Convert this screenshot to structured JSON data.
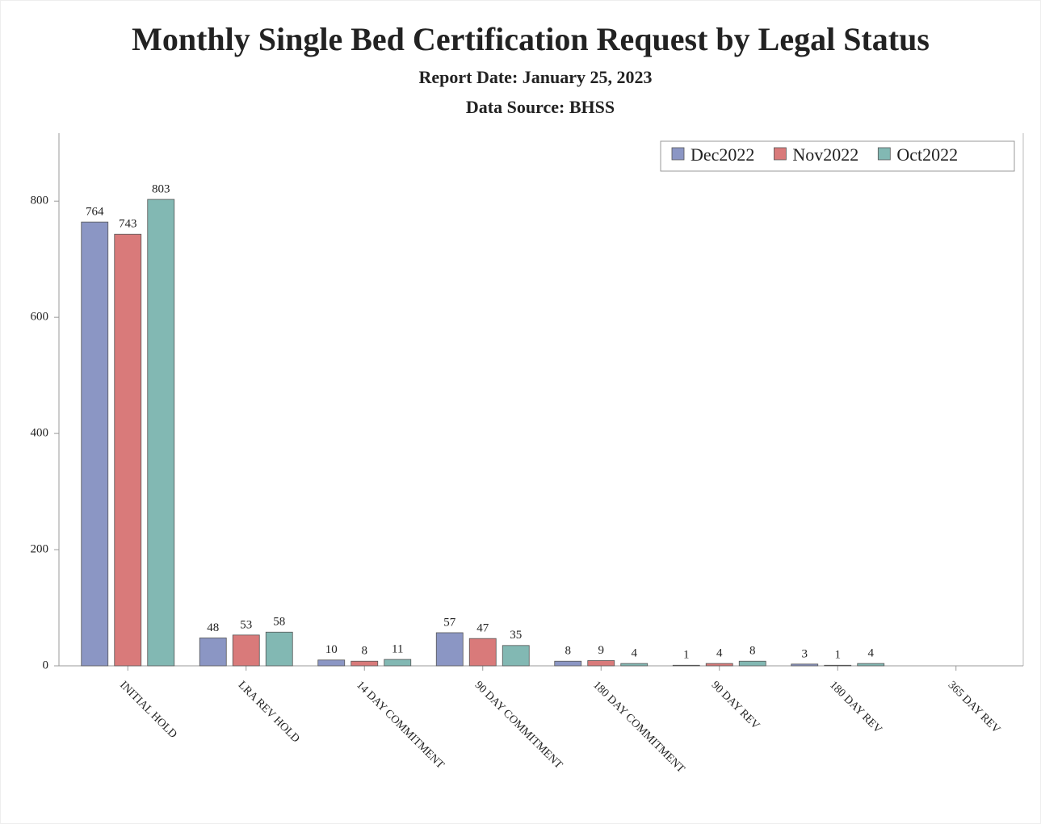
{
  "chart_data": {
    "type": "bar",
    "title": "Monthly Single Bed Certification Request by Legal Status",
    "subtitle": [
      "Report Date: January 25, 2023",
      "Data Source: BHSS"
    ],
    "categories": [
      "INITIAL HOLD",
      "LRA REV HOLD",
      "14 DAY COMMITMENT",
      "90 DAY COMMITMENT",
      "180 DAY COMMITMENT",
      "90 DAY REV",
      "180 DAY REV",
      "365 DAY REV"
    ],
    "series": [
      {
        "name": "Dec2022",
        "color": "#8b96c4",
        "values": [
          764,
          48,
          10,
          57,
          8,
          1,
          3,
          null
        ]
      },
      {
        "name": "Nov2022",
        "color": "#d97a7a",
        "values": [
          743,
          53,
          8,
          47,
          9,
          4,
          1,
          null
        ]
      },
      {
        "name": "Oct2022",
        "color": "#82b8b3",
        "values": [
          803,
          58,
          11,
          35,
          4,
          8,
          4,
          null
        ]
      }
    ],
    "ylim": [
      0,
      917
    ],
    "yticks": [
      0,
      200,
      400,
      600,
      800
    ],
    "legend": "top-right",
    "grid": false
  }
}
